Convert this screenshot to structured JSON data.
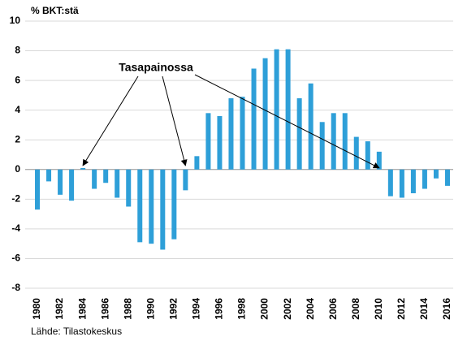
{
  "chart_data": {
    "type": "bar",
    "unit_label": "% BKT:stä",
    "annotation": "Tasapainossa",
    "source": "Lähde: Tilastokeskus",
    "categories": [
      "1980",
      null,
      "1982",
      null,
      "1984",
      null,
      "1986",
      null,
      "1988",
      null,
      "1990",
      null,
      "1992",
      null,
      "1994",
      null,
      "1996",
      null,
      "1998",
      null,
      "2000",
      null,
      "2002",
      null,
      "2004",
      null,
      "2006",
      null,
      "2008",
      null,
      "2010",
      null,
      "2012",
      null,
      "2014",
      null,
      "2016"
    ],
    "values": [
      -2.7,
      -0.8,
      -1.7,
      -2.1,
      0.1,
      -1.3,
      -0.9,
      -1.9,
      -2.5,
      -4.9,
      -5.0,
      -5.4,
      -4.7,
      -1.4,
      0.9,
      3.8,
      3.6,
      4.8,
      4.9,
      6.8,
      7.5,
      8.1,
      8.1,
      4.8,
      5.8,
      3.2,
      3.8,
      3.8,
      2.2,
      1.9,
      1.2,
      -1.8,
      -1.9,
      -1.6,
      -1.3,
      -0.6,
      -1.1
    ],
    "color": "#2e9fd8",
    "ylim": [
      -8,
      10
    ],
    "yticks": [
      -8,
      -6,
      -4,
      -2,
      0,
      2,
      4,
      6,
      8,
      10
    ],
    "grid": true
  }
}
